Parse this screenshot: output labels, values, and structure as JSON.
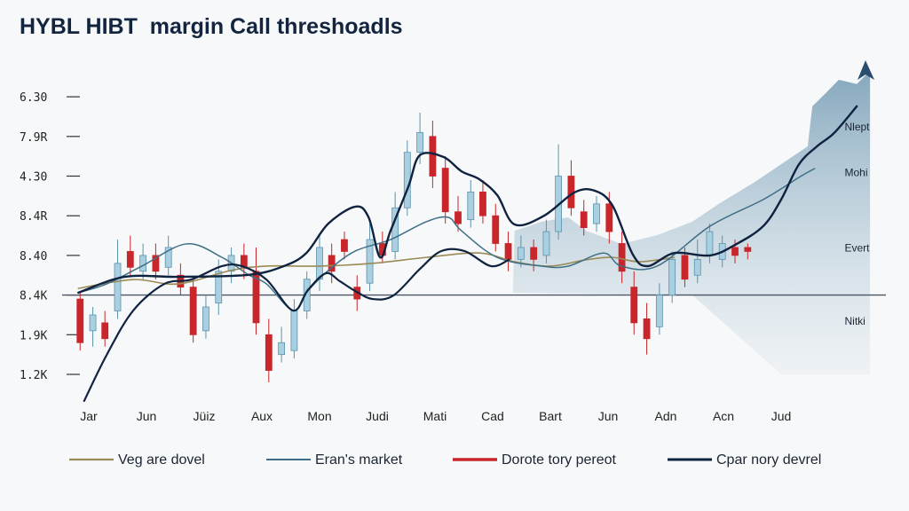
{
  "chart_data": {
    "type": "candlestick",
    "title": "HYBL HIBT  margin Call threshoadls",
    "y_ticks": [
      "1.2K",
      "1.9K",
      "8.4K",
      "8.40",
      "8.4R",
      "4.30",
      "7.9R",
      "6.30"
    ],
    "x_ticks": [
      "Jar",
      "Jun",
      "Jüiz",
      "Aux",
      "Mon",
      "Judi",
      "Mati",
      "Cad",
      "Bart",
      "Jun",
      "Adn",
      "Acn",
      "Jud"
    ],
    "threshold_level": 2.0,
    "colors": {
      "up": "#a9cfe0",
      "up_edge": "#5b93ad",
      "down": "#c8262a",
      "navy": "#0f2340",
      "teal": "#3f6f87",
      "olive": "#9a8a55",
      "area": "#8fb0c4"
    },
    "candles": [
      [
        -0.15,
        1.9,
        0.8,
        2.1,
        0.6
      ],
      [
        0.07,
        1.1,
        1.5,
        1.7,
        0.7
      ],
      [
        0.28,
        1.3,
        0.9,
        1.6,
        0.7
      ],
      [
        0.5,
        1.6,
        2.8,
        3.4,
        1.4
      ],
      [
        0.72,
        3.1,
        2.7,
        3.5,
        2.5
      ],
      [
        0.94,
        2.6,
        3.0,
        3.3,
        2.4
      ],
      [
        1.16,
        3.0,
        2.6,
        3.3,
        2.4
      ],
      [
        1.38,
        2.7,
        3.2,
        3.5,
        2.5
      ],
      [
        1.59,
        2.5,
        2.2,
        2.8,
        2.0
      ],
      [
        1.81,
        2.2,
        1.0,
        2.4,
        0.8
      ],
      [
        2.03,
        1.1,
        1.7,
        2.0,
        0.9
      ],
      [
        2.25,
        1.8,
        2.6,
        2.9,
        1.5
      ],
      [
        2.47,
        2.6,
        3.0,
        3.2,
        2.3
      ],
      [
        2.69,
        3.0,
        2.7,
        3.3,
        2.4
      ],
      [
        2.9,
        2.6,
        1.3,
        3.2,
        1.0
      ],
      [
        3.12,
        1.0,
        0.1,
        1.4,
        -0.2
      ],
      [
        3.34,
        0.5,
        0.8,
        1.2,
        0.3
      ],
      [
        3.56,
        0.6,
        1.6,
        1.9,
        0.4
      ],
      [
        3.78,
        1.6,
        2.4,
        2.6,
        1.4
      ],
      [
        4.0,
        2.4,
        3.2,
        3.5,
        2.1
      ],
      [
        4.21,
        3.0,
        2.6,
        3.3,
        2.3
      ],
      [
        4.43,
        3.4,
        3.1,
        3.6,
        2.9
      ],
      [
        4.65,
        2.2,
        1.9,
        2.5,
        1.6
      ],
      [
        4.87,
        2.3,
        3.4,
        3.8,
        2.1
      ],
      [
        5.09,
        3.3,
        3.0,
        3.6,
        2.8
      ],
      [
        5.31,
        3.1,
        4.2,
        4.6,
        2.9
      ],
      [
        5.52,
        4.2,
        5.6,
        5.9,
        4.0
      ],
      [
        5.74,
        5.6,
        6.1,
        6.6,
        5.3
      ],
      [
        5.96,
        6.0,
        5.0,
        6.4,
        4.7
      ],
      [
        6.18,
        5.2,
        4.1,
        5.5,
        3.8
      ],
      [
        6.4,
        4.1,
        3.8,
        4.5,
        3.6
      ],
      [
        6.62,
        3.9,
        4.6,
        4.9,
        3.7
      ],
      [
        6.83,
        4.6,
        4.0,
        4.9,
        3.8
      ],
      [
        7.05,
        4.0,
        3.3,
        4.3,
        3.1
      ],
      [
        7.27,
        3.3,
        2.9,
        3.6,
        2.6
      ],
      [
        7.49,
        2.9,
        3.2,
        3.5,
        2.7
      ],
      [
        7.71,
        3.2,
        2.9,
        3.4,
        2.6
      ],
      [
        7.93,
        3.0,
        3.6,
        3.9,
        2.8
      ],
      [
        8.14,
        3.6,
        5.0,
        5.8,
        3.4
      ],
      [
        8.36,
        5.0,
        4.2,
        5.4,
        4.0
      ],
      [
        8.58,
        4.1,
        3.7,
        4.4,
        3.5
      ],
      [
        8.8,
        3.8,
        4.3,
        4.5,
        3.6
      ],
      [
        9.02,
        4.3,
        3.6,
        4.6,
        3.3
      ],
      [
        9.24,
        3.3,
        2.6,
        3.6,
        2.3
      ],
      [
        9.45,
        2.2,
        1.3,
        2.6,
        1.0
      ],
      [
        9.67,
        1.4,
        0.9,
        1.8,
        0.5
      ],
      [
        9.89,
        1.2,
        2.0,
        2.3,
        1.0
      ],
      [
        10.11,
        2.0,
        2.9,
        3.1,
        1.8
      ],
      [
        10.33,
        3.0,
        2.4,
        3.2,
        2.2
      ],
      [
        10.55,
        2.5,
        2.9,
        3.4,
        2.3
      ],
      [
        10.76,
        3.0,
        3.6,
        3.8,
        2.8
      ],
      [
        10.98,
        2.9,
        3.3,
        3.5,
        2.7
      ],
      [
        11.2,
        3.2,
        3.0,
        3.4,
        2.8
      ],
      [
        11.42,
        3.2,
        3.1,
        3.3,
        2.9
      ]
    ],
    "series": [
      {
        "name": "Veg are dovel",
        "color": "#9a8a55",
        "width": 1.6,
        "points": [
          [
            -0.18,
            2.17
          ],
          [
            0.77,
            2.39
          ],
          [
            1.54,
            2.28
          ],
          [
            2.46,
            2.62
          ],
          [
            3.08,
            2.73
          ],
          [
            4.0,
            2.73
          ],
          [
            4.92,
            2.8
          ],
          [
            5.85,
            2.95
          ],
          [
            6.77,
            3.06
          ],
          [
            7.38,
            2.84
          ],
          [
            8.0,
            2.73
          ],
          [
            8.62,
            2.89
          ],
          [
            9.08,
            2.95
          ],
          [
            9.54,
            2.84
          ],
          [
            10.15,
            2.95
          ]
        ]
      },
      {
        "name": "Eran's market",
        "color": "#3f6f87",
        "width": 1.5,
        "points": [
          [
            -0.18,
            2.06
          ],
          [
            0.31,
            2.28
          ],
          [
            0.92,
            2.73
          ],
          [
            1.69,
            3.29
          ],
          [
            2.31,
            2.95
          ],
          [
            2.77,
            2.51
          ],
          [
            3.08,
            2.28
          ],
          [
            3.54,
            1.61
          ],
          [
            3.77,
            2.06
          ],
          [
            4.15,
            2.62
          ],
          [
            4.62,
            3.11
          ],
          [
            5.23,
            3.4
          ],
          [
            5.85,
            3.85
          ],
          [
            6.23,
            3.96
          ],
          [
            6.46,
            3.62
          ],
          [
            7.08,
            2.95
          ],
          [
            7.85,
            2.73
          ],
          [
            8.31,
            2.73
          ],
          [
            8.92,
            3.06
          ],
          [
            9.23,
            2.73
          ],
          [
            9.85,
            2.73
          ],
          [
            10.77,
            3.74
          ],
          [
            11.69,
            4.41
          ],
          [
            12.31,
            4.97
          ],
          [
            12.58,
            5.19
          ]
        ]
      },
      {
        "name": "Dorote tory pereot",
        "color": "#c8262a",
        "width": 3,
        "points": []
      },
      {
        "name": "Cpar nory devrel",
        "color": "#0f2340",
        "width": 2.4,
        "points": [
          [
            -0.18,
            2.06
          ],
          [
            0.62,
            2.46
          ],
          [
            1.54,
            2.46
          ],
          [
            2.77,
            2.51
          ],
          [
            3.38,
            2.73
          ],
          [
            3.77,
            3.06
          ],
          [
            4.15,
            3.8
          ],
          [
            4.62,
            4.23
          ],
          [
            4.85,
            3.96
          ],
          [
            5.05,
            2.95
          ],
          [
            5.23,
            3.62
          ],
          [
            5.54,
            4.74
          ],
          [
            5.74,
            5.53
          ],
          [
            6.15,
            5.48
          ],
          [
            6.46,
            5.12
          ],
          [
            6.77,
            4.92
          ],
          [
            7.08,
            4.52
          ],
          [
            7.38,
            3.78
          ],
          [
            7.89,
            4.0
          ],
          [
            8.42,
            4.59
          ],
          [
            8.77,
            4.63
          ],
          [
            9.08,
            4.25
          ],
          [
            9.43,
            3.02
          ],
          [
            9.69,
            2.73
          ],
          [
            10.15,
            3.06
          ],
          [
            10.77,
            3.0
          ],
          [
            11.23,
            3.29
          ],
          [
            11.69,
            3.74
          ],
          [
            12.0,
            4.41
          ],
          [
            12.31,
            5.3
          ],
          [
            12.62,
            5.75
          ],
          [
            12.92,
            6.09
          ],
          [
            13.31,
            6.76
          ]
        ]
      },
      {
        "color": "#0f2340",
        "width": 2.2,
        "points": [
          [
            -0.08,
            -0.67
          ],
          [
            0.31,
            0.49
          ],
          [
            0.77,
            1.61
          ],
          [
            1.31,
            2.28
          ],
          [
            1.77,
            2.39
          ],
          [
            2.31,
            2.73
          ],
          [
            2.65,
            2.73
          ],
          [
            3.08,
            2.39
          ],
          [
            3.54,
            1.61
          ],
          [
            3.8,
            2.13
          ],
          [
            4.11,
            2.55
          ],
          [
            4.35,
            2.35
          ],
          [
            4.62,
            2.1
          ],
          [
            4.92,
            1.9
          ],
          [
            5.28,
            1.99
          ],
          [
            5.74,
            2.66
          ],
          [
            6.11,
            3.11
          ],
          [
            6.51,
            3.11
          ],
          [
            6.97,
            2.73
          ],
          [
            7.28,
            2.89
          ]
        ]
      }
    ],
    "area": [
      [
        7.35,
        2.06
      ],
      [
        7.38,
        3.62
      ],
      [
        7.85,
        3.85
      ],
      [
        8.31,
        3.96
      ],
      [
        8.62,
        3.62
      ],
      [
        9.23,
        3.29
      ],
      [
        9.85,
        3.51
      ],
      [
        10.46,
        3.85
      ],
      [
        10.92,
        4.3
      ],
      [
        11.54,
        4.85
      ],
      [
        12.0,
        5.3
      ],
      [
        12.46,
        5.75
      ],
      [
        12.54,
        6.76
      ],
      [
        12.77,
        7.09
      ],
      [
        13.0,
        7.43
      ],
      [
        13.31,
        7.32
      ],
      [
        13.54,
        7.65
      ],
      [
        13.54,
        0.0
      ],
      [
        12.0,
        0.0
      ],
      [
        11.23,
        1.0
      ],
      [
        10.46,
        2.0
      ]
    ],
    "annotations": [
      {
        "text": "Nlept",
        "x": 13.1,
        "y": 6.15
      },
      {
        "text": "Mohi",
        "x": 13.1,
        "y": 5.0
      },
      {
        "text": "Evert",
        "x": 13.1,
        "y": 3.1
      },
      {
        "text": "Nitki",
        "x": 13.1,
        "y": 1.25
      }
    ],
    "legend_placement": "bottom",
    "grid": false
  }
}
